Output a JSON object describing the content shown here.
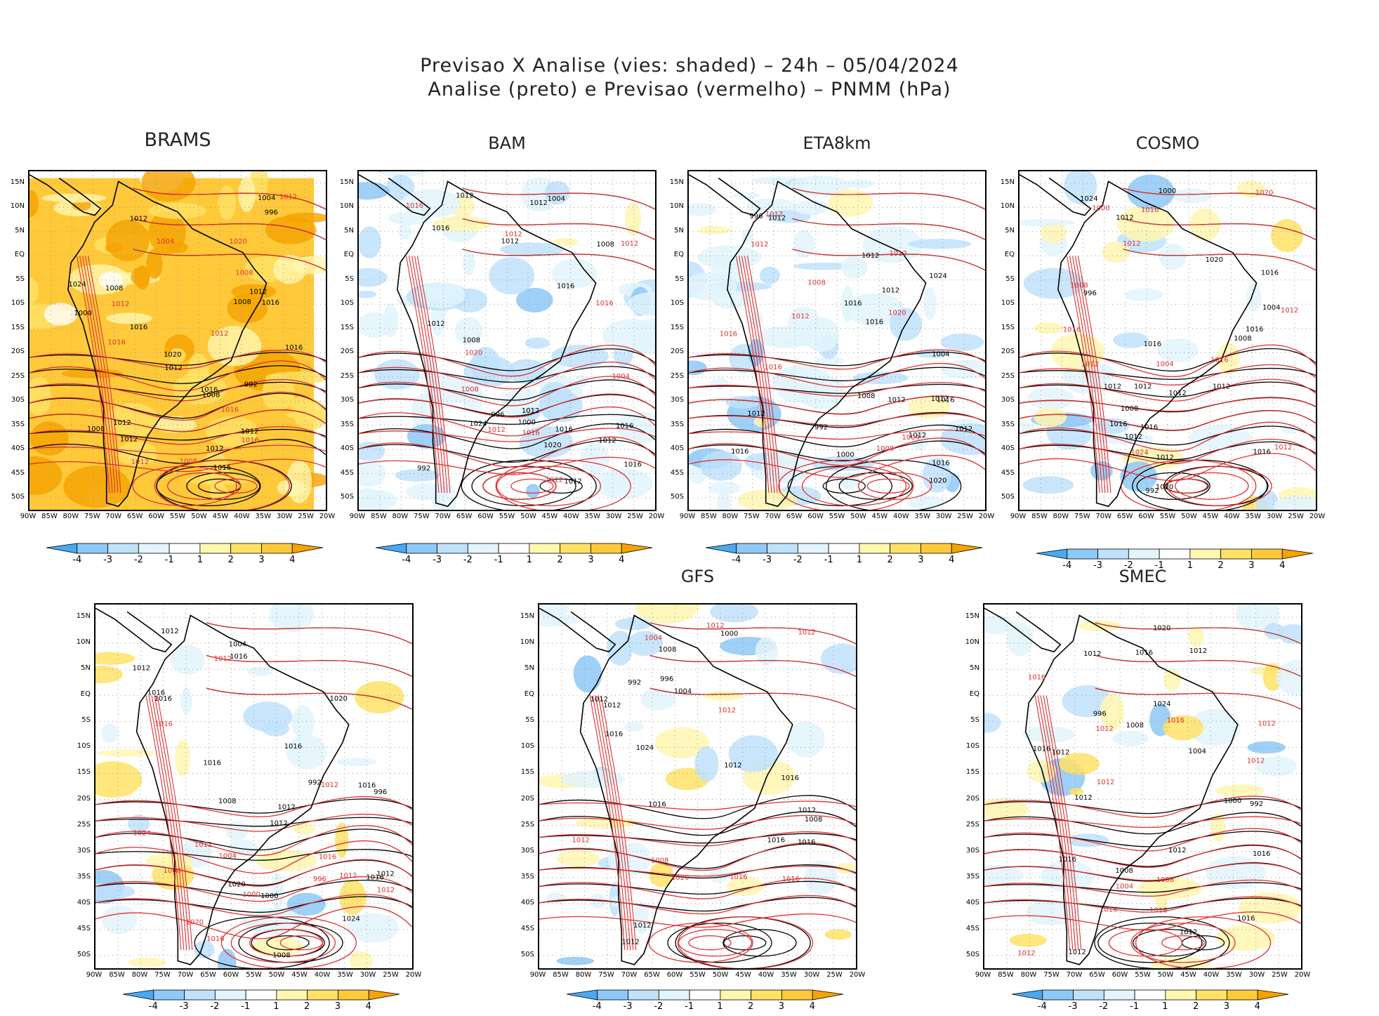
{
  "header": {
    "line1": "Previsao X Analise (vies: shaded) – 24h – 05/04/2024",
    "line2": "Analise (preto) e Previsao (vermelho) – PNMM (hPa)"
  },
  "axes": {
    "lat_labels": [
      "15N",
      "10N",
      "5N",
      "EQ",
      "5S",
      "10S",
      "15S",
      "20S",
      "25S",
      "30S",
      "35S",
      "40S",
      "45S",
      "50S"
    ],
    "lon_labels": [
      "90W",
      "85W",
      "80W",
      "75W",
      "70W",
      "65W",
      "60W",
      "55W",
      "50W",
      "45W",
      "40W",
      "35W",
      "30W",
      "25W",
      "20W"
    ]
  },
  "colorbar": {
    "labels": [
      "-4",
      "-3",
      "-2",
      "-1",
      "1",
      "2",
      "3",
      "4"
    ],
    "colors": [
      "#4aa8f0",
      "#8ec8f6",
      "#bfe2fb",
      "#e2f5fc",
      "#ffffff",
      "#fff6b0",
      "#ffe266",
      "#ffc93a",
      "#f5a300"
    ]
  },
  "colors": {
    "analysis_isobar": "#000000",
    "forecast_isobar": "#e03030",
    "grid": "#9a9a9a"
  },
  "panels": [
    {
      "id": "brams",
      "title": "BRAMS",
      "bias": "warm",
      "isobar_labels_black": [
        "1016",
        "1012",
        "1012",
        "1008",
        "1012",
        "1012",
        "1016",
        "1016",
        "1012",
        "1012",
        "1008",
        "1024",
        "1020",
        "1016",
        "1008",
        "1004",
        "1000",
        "996",
        "992",
        "1016",
        "1012",
        "1008"
      ],
      "isobar_labels_red": [
        "1012",
        "1016",
        "1012",
        "1008",
        "1016",
        "1012",
        "1008",
        "1004",
        "1016",
        "1012",
        "1020"
      ]
    },
    {
      "id": "bam",
      "title": "BAM",
      "bias": "cool",
      "isobar_labels_black": [
        "1012",
        "1016",
        "1012",
        "1012",
        "1016",
        "1016",
        "1012",
        "1016",
        "1016",
        "1020",
        "1012",
        "1008",
        "1004",
        "1000",
        "996",
        "992",
        "1012",
        "1008",
        "1024",
        "1012"
      ],
      "isobar_labels_red": [
        "1012",
        "1012",
        "1008",
        "1016",
        "1012",
        "1016",
        "1012",
        "1004",
        "1020",
        "1016"
      ]
    },
    {
      "id": "eta8km",
      "title": "ETA8km",
      "bias": "cool",
      "isobar_labels_black": [
        "1012",
        "1016",
        "1012",
        "1012",
        "1012",
        "1012",
        "1016",
        "1012",
        "1016",
        "1016",
        "1012",
        "1008",
        "1004",
        "1000",
        "996",
        "992",
        "1020",
        "1024",
        "1016",
        "1012"
      ],
      "isobar_labels_red": [
        "1016",
        "1012",
        "1012",
        "1008",
        "1012",
        "1016",
        "1004",
        "1008",
        "1012",
        "1020"
      ]
    },
    {
      "id": "cosmo",
      "title": "COSMO",
      "bias": "mixed",
      "isobar_labels_black": [
        "1012",
        "1012",
        "1012",
        "1016",
        "1012",
        "1016",
        "1012",
        "1016",
        "1020",
        "1012",
        "1016",
        "1016",
        "1024",
        "1020",
        "1016",
        "1012",
        "1008",
        "1004",
        "1000",
        "996",
        "992",
        "1008"
      ],
      "isobar_labels_red": [
        "1012",
        "1016",
        "1012",
        "1012",
        "1016",
        "1016",
        "1012",
        "1020",
        "1024",
        "1008",
        "1004",
        "1000"
      ]
    },
    {
      "id": "ecmwf",
      "title": "",
      "bias": "mixed",
      "isobar_labels_black": [
        "1012",
        "1016",
        "1012",
        "1020",
        "1016",
        "1012",
        "1016",
        "1016",
        "1020",
        "1024",
        "1016",
        "1012",
        "1008",
        "1004",
        "1000",
        "996",
        "992",
        "1016",
        "1012",
        "1008",
        "1016"
      ],
      "isobar_labels_red": [
        "1012",
        "1016",
        "1012",
        "1016",
        "1012",
        "1012",
        "1016",
        "1012",
        "1024",
        "1020",
        "1008",
        "1004",
        "1000",
        "996"
      ]
    },
    {
      "id": "gfs",
      "title": "GFS",
      "bias": "mixed",
      "isobar_labels_black": [
        "1016",
        "1012",
        "1012",
        "1012",
        "1016",
        "1012",
        "1016",
        "1016",
        "1016",
        "1012",
        "1008",
        "1004",
        "1000",
        "996",
        "992",
        "1024",
        "1012",
        "1008"
      ],
      "isobar_labels_red": [
        "1012",
        "1012",
        "1016",
        "1012",
        "1008",
        "1004",
        "1012",
        "1020",
        "1016"
      ]
    },
    {
      "id": "smec",
      "title": "SMEC",
      "bias": "mixed",
      "isobar_labels_black": [
        "1016",
        "1012",
        "1012",
        "1012",
        "1012",
        "1016",
        "1012",
        "1016",
        "1016",
        "1012",
        "1008",
        "1004",
        "1000",
        "996",
        "992",
        "1024",
        "1020",
        "1016",
        "1012",
        "1008"
      ],
      "isobar_labels_red": [
        "1016",
        "1012",
        "1012",
        "1016",
        "1012",
        "1016",
        "1012",
        "1008",
        "1004",
        "1016",
        "1012"
      ]
    }
  ]
}
